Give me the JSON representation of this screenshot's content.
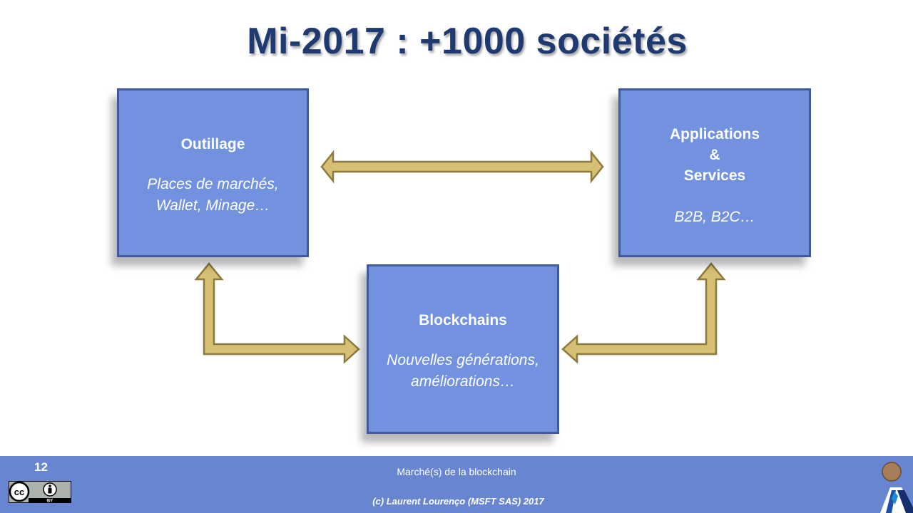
{
  "slide": {
    "title": "Mi-2017 : +1000 sociétés"
  },
  "boxes": {
    "outillage": {
      "heading": "Outillage",
      "subtitle_lines": [
        "Places de marchés,",
        "Wallet, Minage…"
      ]
    },
    "applications": {
      "heading_lines": [
        "Applications",
        "&",
        "Services"
      ],
      "subtitle": "B2B, B2C…"
    },
    "blockchains": {
      "heading": "Blockchains",
      "subtitle_lines": [
        "Nouvelles générations,",
        "améliorations…"
      ]
    }
  },
  "footer": {
    "page_number": "12",
    "title": "Marché(s) de la blockchain",
    "copyright": "(c) Laurent Lourenço (MSFT SAS) 2017",
    "license_badge": {
      "cc_label": "cc",
      "by_label": "BY"
    }
  },
  "colors": {
    "title": "#1f3a70",
    "box_fill": "#7292e0",
    "box_border": "#3f5a9c",
    "arrow_fill": "#d7bf73",
    "arrow_stroke": "#8c7a3e",
    "footer_band": "#6886d0"
  }
}
